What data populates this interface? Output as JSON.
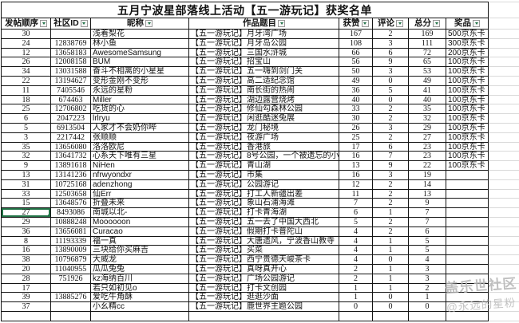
{
  "table": {
    "title": "五月宁波星部落线上活动【五一游玩记】获奖名单",
    "columns": [
      "发帖顺序",
      "社区ID",
      "昵称",
      "作品题目",
      "获赞",
      "评论",
      "总分",
      "奖品"
    ],
    "rows": [
      [
        "30",
        "",
        "浅着梨花",
        "【五一游玩记】月牙湾广场",
        "167",
        "2",
        "169",
        "500京东卡"
      ],
      [
        "24",
        "12838769",
        "林小鱼",
        "【五一游玩记】月牙岛公园",
        "108",
        "3",
        "111",
        "300京东卡"
      ],
      [
        "12",
        "13658183",
        "AwesomeSamsung",
        "【五一游玩记】三国水浒城",
        "66",
        "6",
        "72",
        "200京东卡"
      ],
      [
        "26",
        "12008158",
        "BUM",
        "【五一游玩记】招宝山",
        "56",
        "9",
        "65",
        "100京东卡"
      ],
      [
        "34",
        "13031588",
        "奋斗不相离的小星星",
        "【五一游玩记】五一嗨到剑门关",
        "50",
        "3",
        "53",
        "100京东卡"
      ],
      [
        "22",
        "13194627",
        "变形金刚不变形",
        "【五一游玩记】高二适纪念馆",
        "49",
        "0",
        "49",
        "100京东卡"
      ],
      [
        "11",
        "7405546",
        "永远的星粉",
        "【五一游玩记】南长街的热闹",
        "36",
        "5",
        "41",
        "100京东卡"
      ],
      [
        "18",
        "674463",
        "Miller",
        "【五一游玩记】湖边露营烧烤",
        "40",
        "0",
        "40",
        "100京东卡"
      ],
      [
        "25",
        "12706802",
        "吃货的心",
        "【五一游玩记】修仙勾森林公园",
        "33",
        "2",
        "35",
        "100京东卡"
      ],
      [
        "6",
        "2047223",
        "lrlryu",
        "【五一游玩记】闲逛酷迷兔展",
        "30",
        "2",
        "32",
        "100京东卡"
      ],
      [
        "5",
        "6913504",
        "人家才不会奶你哔",
        "【五一游玩记】龙门秘境",
        "26",
        "3",
        "29",
        "100京东卡"
      ],
      [
        "3",
        "2217442",
        "张顺顺",
        "【五一游玩记】夜游广场",
        "25",
        "2",
        "27",
        "100京东卡"
      ],
      [
        "35",
        "13656080",
        "洛洛欧尼",
        "【五一游玩记】香港旅",
        "17",
        "6",
        "23",
        "100京东卡"
      ],
      [
        "32",
        "13641732",
        "心系天下唯有三星",
        "【五一游玩记】8号公园，一个被遗忘的小众景点",
        "16",
        "7",
        "23",
        "100京东卡"
      ],
      [
        "9",
        "13891618",
        "NiHen",
        "【五一游玩记】青山湖",
        "13",
        "9",
        "22",
        "100京东卡"
      ],
      [
        "13",
        "13141236",
        "nfrwyondxr",
        "【五一游玩记】市集",
        "16",
        "3",
        "19",
        ""
      ],
      [
        "31",
        "10725168",
        "adenzhong",
        "【五一游玩记】公园游记",
        "12",
        "2",
        "14",
        ""
      ],
      [
        "33",
        "12503658",
        "仙Err",
        "【五一游玩记】打工人新疆出差",
        "11",
        "2",
        "13",
        ""
      ],
      [
        "15",
        "13648576",
        "折叠未来",
        "【五一游玩记】象山石浦海滩",
        "7",
        "2",
        "9",
        ""
      ],
      [
        "27",
        "8493086",
        "南城以北-",
        "【五一游玩记】打卡青海湖",
        "6",
        "1",
        "7",
        ""
      ],
      [
        "29",
        "10888248",
        "Moooooon",
        "【五一游玩记】五一去了中国大西北",
        "5",
        "2",
        "7",
        ""
      ],
      [
        "36",
        "13656081",
        "Curacao",
        "【五一游玩记】假期打卡普陀山",
        "4",
        "2",
        "6",
        ""
      ],
      [
        "8",
        "11193339",
        "福一真",
        "【五一游玩记】大唐遗风，宁波香山教寺",
        "4",
        "1",
        "5",
        ""
      ],
      [
        "16",
        "13890009",
        "三块给你买麻吉",
        "【五一游玩记】买菜",
        "4",
        "1",
        "5",
        ""
      ],
      [
        "38",
        "10796879",
        "大威龙",
        "【五一游玩记】西宁贵德天峻茶卡",
        "4",
        "0",
        "4",
        ""
      ],
      [
        "20",
        "11040955",
        "瓜瓜兔兔",
        "【五一游玩记】真呀真开心",
        "2",
        "1",
        "3",
        ""
      ],
      [
        "28",
        "751926",
        "kz海纳百川",
        "【五一游玩记】广场公园游记",
        "2",
        "1",
        "3",
        ""
      ],
      [
        "17",
        "",
        "若只如初见o",
        "【五一游玩记】打卡文创园",
        "1",
        "1",
        "2",
        ""
      ],
      [
        "39",
        "13885276",
        "爱吃牛角酥",
        "【五一游玩记】逛逛沙面",
        "1",
        "0",
        "1",
        ""
      ],
      [
        "37",
        "",
        "小幺精cc",
        "【五一游玩记】鹿世界主题公园",
        "0",
        "0",
        "0",
        ""
      ]
    ],
    "trailing_empty_rows": 1,
    "selected_cell": {
      "row": 19,
      "col": 0
    }
  },
  "watermark": {
    "line1": "盖乐世社区",
    "line2": "@永远的星粉"
  },
  "colors": {
    "selection_border": "#217346",
    "filter_arrow": "#1e7145",
    "watermark_text": "#b5b5b5"
  }
}
